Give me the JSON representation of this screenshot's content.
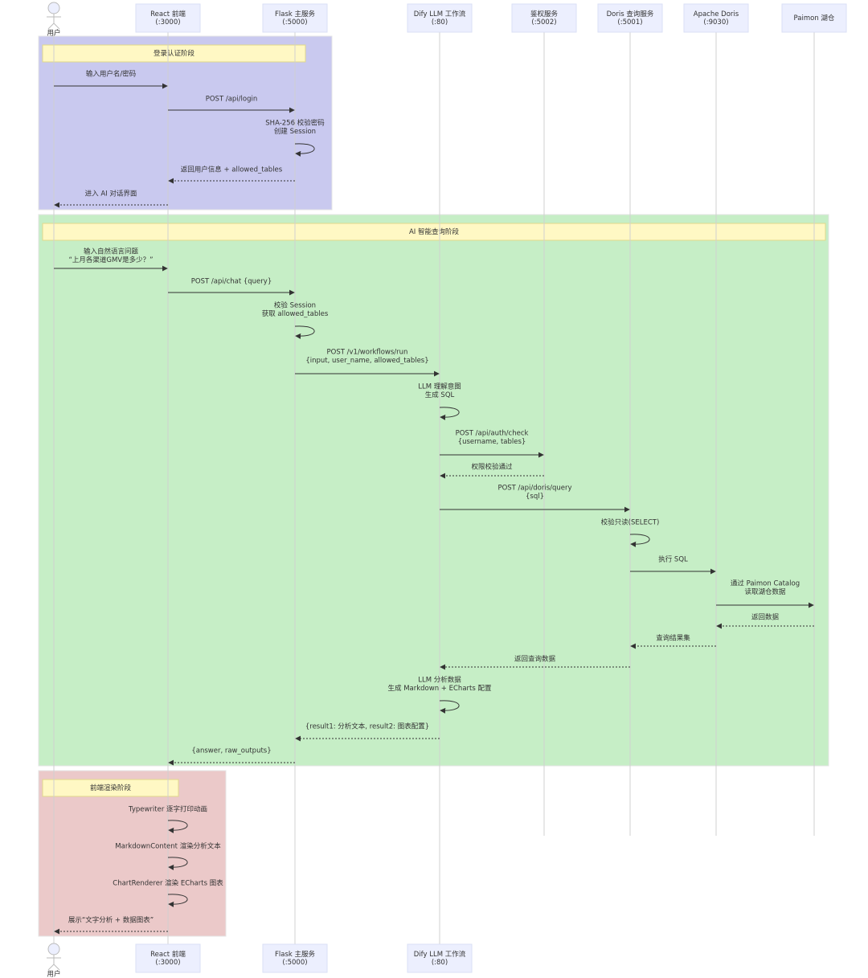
{
  "participants": [
    {
      "label": [
        "用户"
      ]
    },
    {
      "label": [
        "React 前端",
        "(:3000)"
      ]
    },
    {
      "label": [
        "Flask 主服务",
        "(:5000)"
      ]
    },
    {
      "label": [
        "Dify LLM 工作流",
        "(:80)"
      ]
    },
    {
      "label": [
        "鉴权服务",
        "(:5002)"
      ]
    },
    {
      "label": [
        "Doris 查询服务",
        "(:5001)"
      ]
    },
    {
      "label": [
        "Apache Doris",
        "(:9030)"
      ]
    },
    {
      "label": [
        "Paimon 湖仓"
      ]
    }
  ],
  "sections": [
    {
      "title": "登录认证阶段"
    },
    {
      "title": "AI 智能查询阶段"
    },
    {
      "title": "前端渲染阶段"
    }
  ],
  "messages": [
    {
      "text": [
        "输入用户名/密码"
      ]
    },
    {
      "text": [
        "POST /api/login"
      ]
    },
    {
      "text": [
        "SHA-256 校验密码",
        "创建 Session"
      ]
    },
    {
      "text": [
        "返回用户信息 + allowed_tables"
      ]
    },
    {
      "text": [
        "进入 AI 对话界面"
      ]
    },
    {
      "text": [
        "输入自然语言问题",
        "“上月各渠道GMV是多少？”"
      ]
    },
    {
      "text": [
        "POST /api/chat {query}"
      ]
    },
    {
      "text": [
        "校验 Session",
        "获取 allowed_tables"
      ]
    },
    {
      "text": [
        "POST /v1/workflows/run",
        "{input, user_name, allowed_tables}"
      ]
    },
    {
      "text": [
        "LLM 理解意图",
        "生成 SQL"
      ]
    },
    {
      "text": [
        "POST /api/auth/check",
        "{username, tables}"
      ]
    },
    {
      "text": [
        "权限校验通过"
      ]
    },
    {
      "text": [
        "POST /api/doris/query",
        "{sql}"
      ]
    },
    {
      "text": [
        "校验只读(SELECT)"
      ]
    },
    {
      "text": [
        "执行 SQL"
      ]
    },
    {
      "text": [
        "通过 Paimon Catalog",
        "读取湖仓数据"
      ]
    },
    {
      "text": [
        "返回数据"
      ]
    },
    {
      "text": [
        "查询结果集"
      ]
    },
    {
      "text": [
        "返回查询数据"
      ]
    },
    {
      "text": [
        "LLM 分析数据",
        "生成 Markdown + ECharts 配置"
      ]
    },
    {
      "text": [
        "{result1: 分析文本, result2: 图表配置}"
      ]
    },
    {
      "text": [
        "{answer, raw_outputs}"
      ]
    },
    {
      "text": [
        "Typewriter 逐字打印动画"
      ]
    },
    {
      "text": [
        "MarkdownContent 渲染分析文本"
      ]
    },
    {
      "text": [
        "ChartRenderer 渲染 ECharts 图表"
      ]
    },
    {
      "text": [
        "展示“文字分析 + 数据图表”"
      ]
    }
  ]
}
